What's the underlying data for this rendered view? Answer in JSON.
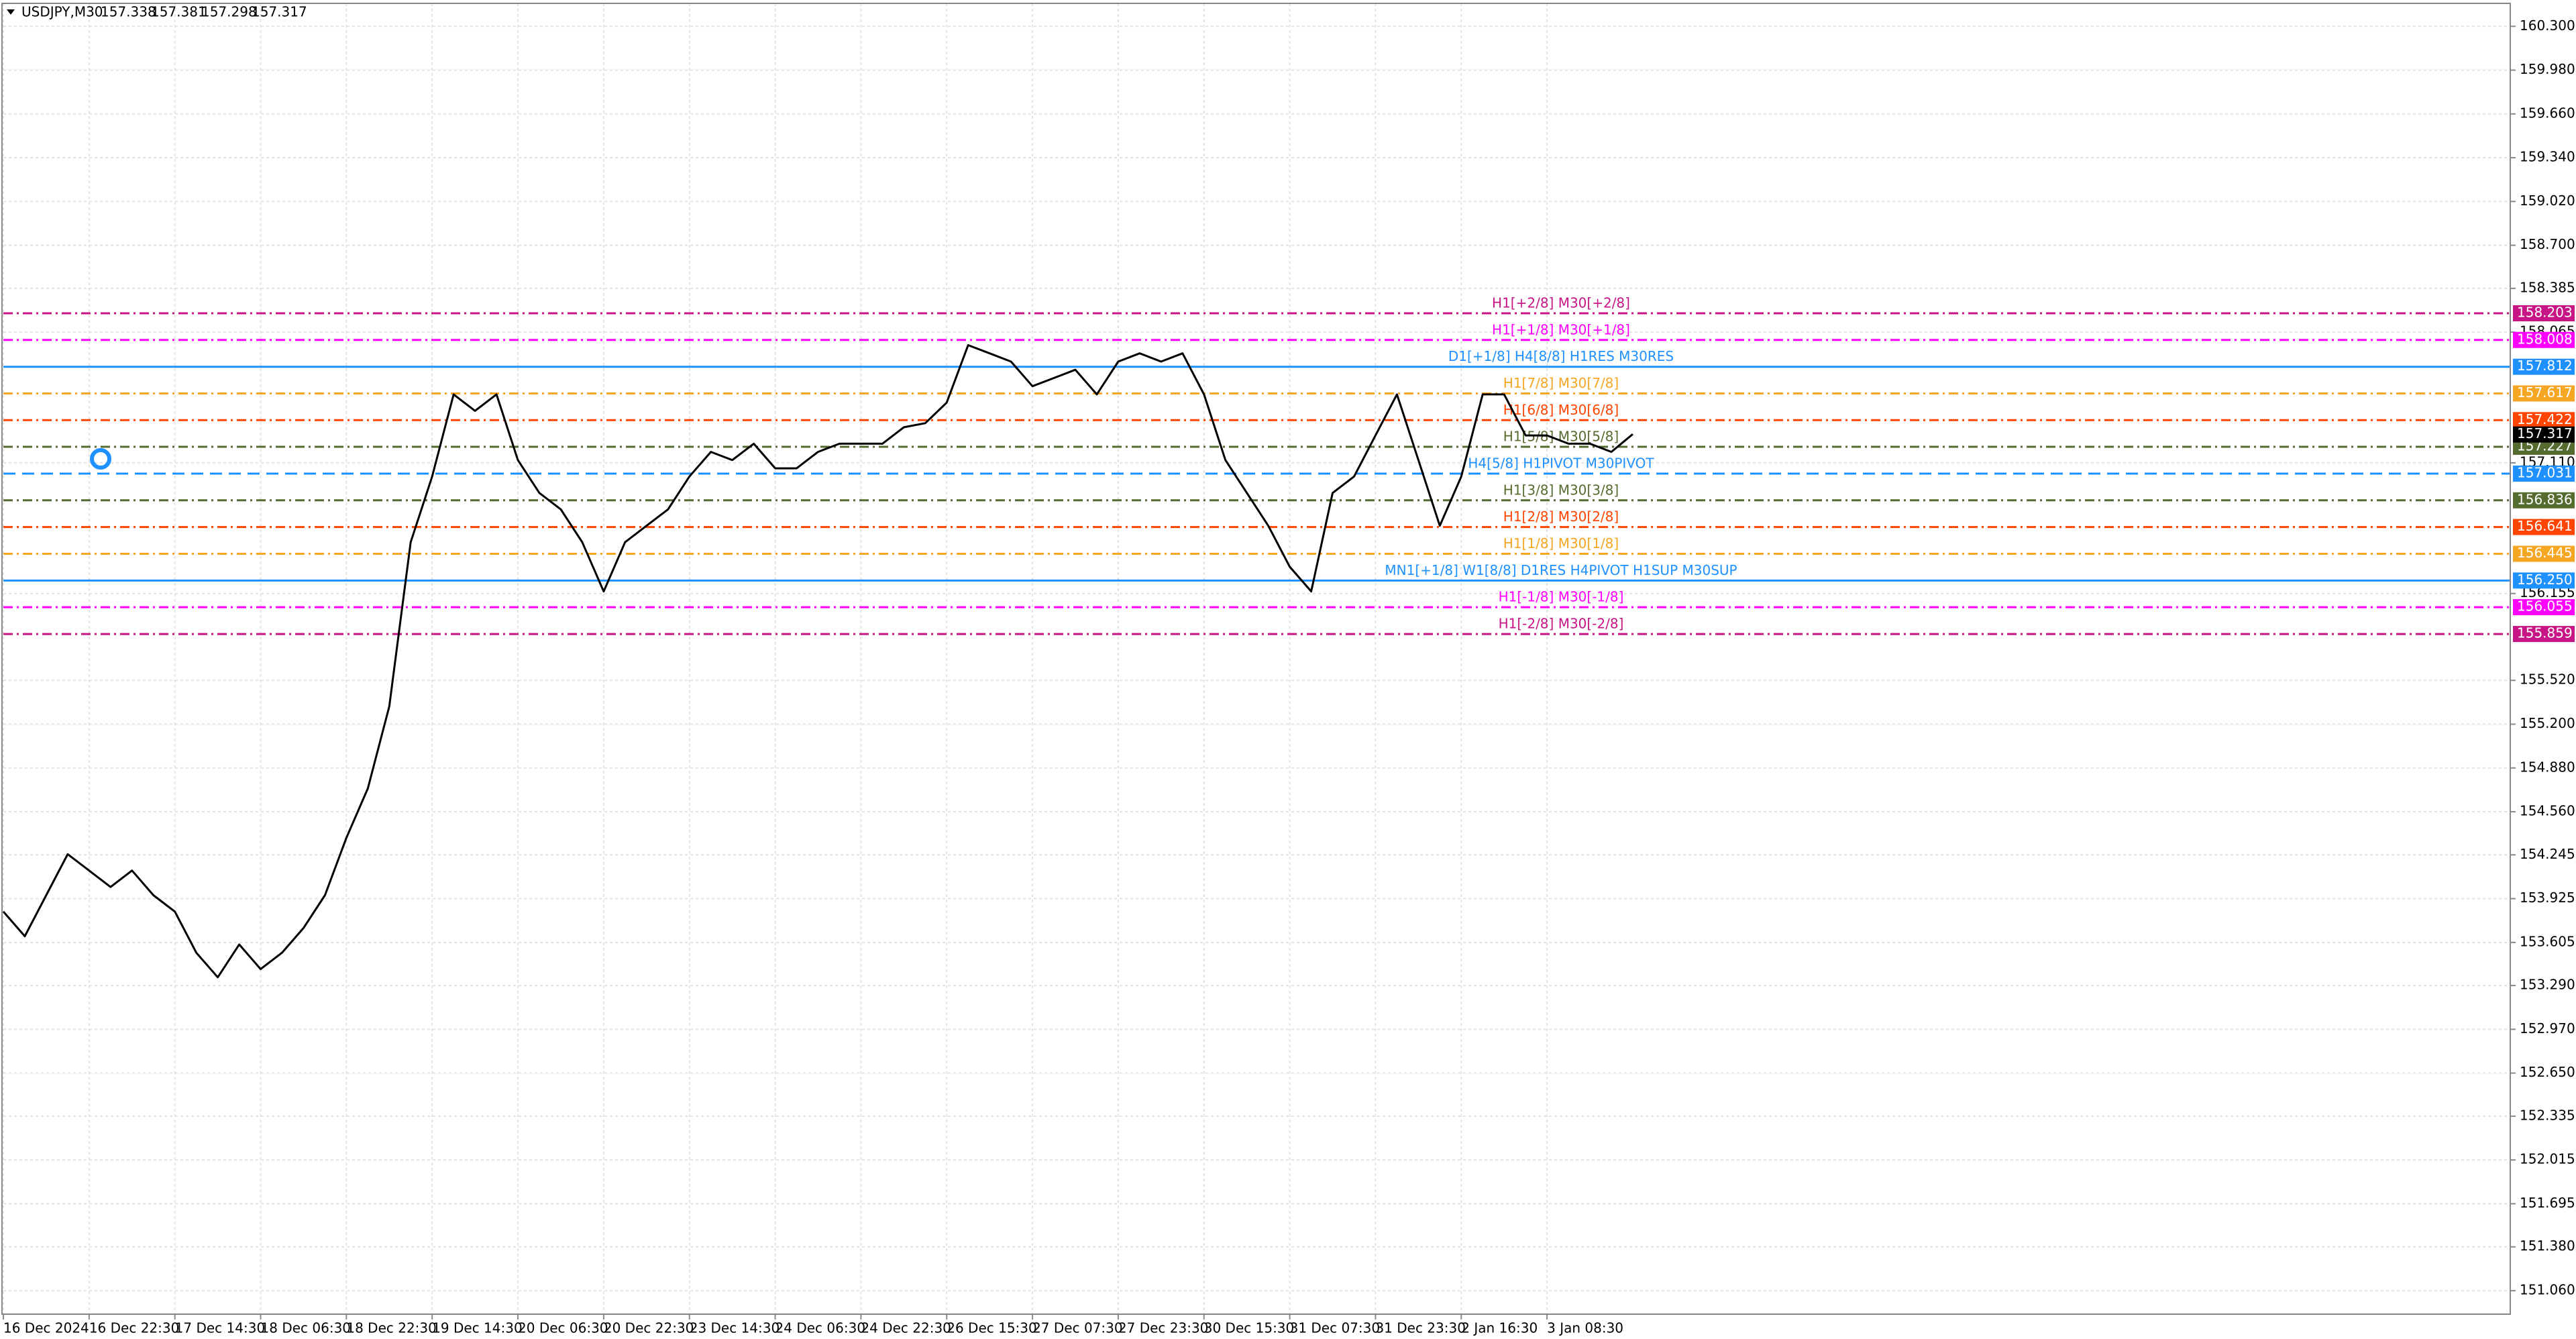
{
  "chart_data": {
    "type": "line",
    "title": "USDJPY,M30",
    "ohlc": [
      157.338,
      157.381,
      157.298,
      157.317
    ],
    "color": "#000000",
    "grid": true,
    "ylim": [
      150.888,
      160.468
    ],
    "yticks": [
      {
        "value": 160.3,
        "label": "160.300"
      },
      {
        "value": 159.98,
        "label": "159.980"
      },
      {
        "value": 159.66,
        "label": "159.660"
      },
      {
        "value": 159.34,
        "label": "159.340"
      },
      {
        "value": 159.02,
        "label": "159.020"
      },
      {
        "value": 158.7,
        "label": "158.700"
      },
      158.385,
      158.065,
      {
        "value": 157.11,
        "label": "157.110"
      },
      156.155,
      {
        "value": 155.52,
        "label": "155.520"
      },
      {
        "value": 155.2,
        "label": "155.200"
      },
      {
        "value": 154.88,
        "label": "154.880"
      },
      {
        "value": 154.56,
        "label": "154.560"
      },
      154.245,
      153.925,
      153.605,
      {
        "value": 153.29,
        "label": "153.290"
      },
      {
        "value": 152.97,
        "label": "152.970"
      },
      {
        "value": 152.65,
        "label": "152.650"
      },
      152.335,
      152.015,
      151.695,
      {
        "value": 151.38,
        "label": "151.380"
      },
      {
        "value": 151.06,
        "label": "151.060"
      }
    ],
    "categories": [
      "16 Dec 2024",
      null,
      null,
      null,
      "16 Dec 22:30",
      null,
      null,
      null,
      "17 Dec 14:30",
      null,
      null,
      null,
      "18 Dec 06:30",
      null,
      null,
      null,
      "18 Dec 22:30",
      null,
      null,
      null,
      "19 Dec 14:30",
      null,
      null,
      null,
      "20 Dec 06:30",
      null,
      null,
      null,
      "20 Dec 22:30",
      null,
      null,
      null,
      "23 Dec 14:30",
      null,
      null,
      null,
      "24 Dec 06:30",
      null,
      null,
      null,
      "24 Dec 22:30",
      null,
      null,
      null,
      "26 Dec 15:30",
      null,
      null,
      null,
      "27 Dec 07:30",
      null,
      null,
      null,
      "27 Dec 23:30",
      null,
      null,
      null,
      "30 Dec 15:30",
      null,
      null,
      null,
      "31 Dec 07:30",
      null,
      null,
      null,
      "31 Dec 23:30",
      null,
      null,
      null,
      "2 Jan 16:30",
      null,
      null,
      null,
      "3 Jan 08:30",
      null,
      null,
      null,
      null
    ],
    "values": [
      153.83,
      153.65,
      153.95,
      154.25,
      154.13,
      154.01,
      154.13,
      153.95,
      153.83,
      153.53,
      153.35,
      153.59,
      153.41,
      153.53,
      153.71,
      153.95,
      154.37,
      154.73,
      155.33,
      156.53,
      157.01,
      157.61,
      157.49,
      157.61,
      157.13,
      156.89,
      156.77,
      156.53,
      156.17,
      156.53,
      156.65,
      156.77,
      157.01,
      157.19,
      157.13,
      157.25,
      157.07,
      157.07,
      157.19,
      157.25,
      157.25,
      157.25,
      157.37,
      157.4,
      157.55,
      157.97,
      157.91,
      157.85,
      157.67,
      157.73,
      157.79,
      157.61,
      157.85,
      157.91,
      157.85,
      157.91,
      157.61,
      157.13,
      156.89,
      156.65,
      156.35,
      156.17,
      156.89,
      157.01,
      157.31,
      157.61,
      157.13,
      156.65,
      157.01,
      157.61,
      157.61,
      157.31,
      157.31,
      157.25,
      157.25,
      157.19,
      157.32
    ],
    "levels": [
      {
        "price": 158.203,
        "text": "H1[+2/8] M30[+2/8]",
        "color": "#c71585",
        "style": "dashdot"
      },
      {
        "price": 158.008,
        "text": "H1[+1/8] M30[+1/8]",
        "color": "#ff00ff",
        "style": "dashdot"
      },
      {
        "price": 157.812,
        "text": "D1[+1/8] H4[8/8] H1RES M30RES",
        "color": "#1e90ff",
        "style": "solid"
      },
      {
        "price": 157.617,
        "text": "H1[7/8] M30[7/8]",
        "color": "#f5a623",
        "style": "dashdot"
      },
      {
        "price": 157.422,
        "text": "H1[6/8] M30[6/8]",
        "color": "#ff4500",
        "style": "dashdot"
      },
      {
        "price": 157.227,
        "text": "H1[5/8] M30[5/8]",
        "color": "#556b2f",
        "style": "dashdot"
      },
      {
        "price": 157.031,
        "text": "H4[5/8] H1PIVOT M30PIVOT",
        "color": "#1e90ff",
        "style": "dashed"
      },
      {
        "price": 156.836,
        "text": "H1[3/8] M30[3/8]",
        "color": "#556b2f",
        "style": "dashdot"
      },
      {
        "price": 156.641,
        "text": "H1[2/8] M30[2/8]",
        "color": "#ff4500",
        "style": "dashdot"
      },
      {
        "price": 156.445,
        "text": "H1[1/8] M30[1/8]",
        "color": "#f5a623",
        "style": "dashdot"
      },
      {
        "price": 156.25,
        "price_label": "156.250",
        "text": "MN1[+1/8] W1[8/8] D1RES H4PIVOT H1SUP M30SUP",
        "color": "#1e90ff",
        "style": "solid"
      },
      {
        "price": 156.055,
        "text": "H1[-1/8] M30[-1/8]",
        "color": "#ff00ff",
        "style": "dashdot"
      },
      {
        "price": 155.859,
        "text": "H1[-2/8] M30[-2/8]",
        "color": "#c71585",
        "style": "dashdot"
      }
    ]
  }
}
